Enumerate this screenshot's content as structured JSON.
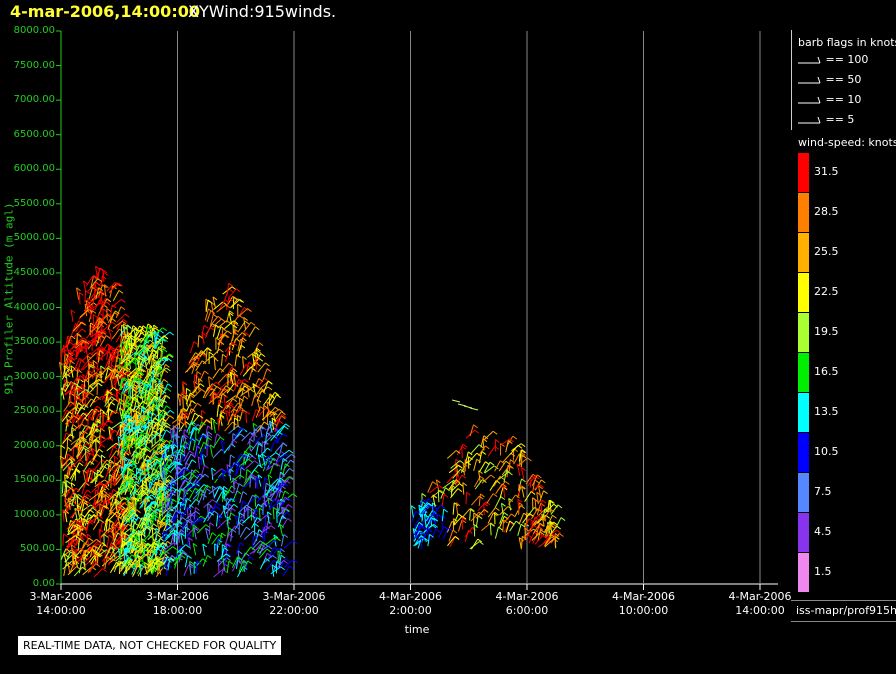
{
  "header": {
    "time": "4-mar-2006,14:00:00",
    "title": "XYWind:915winds."
  },
  "chart_data": {
    "type": "scatter",
    "title": "XYWind:915winds.",
    "xlabel": "time",
    "ylabel": "915 Profiler Altitude (m agl)",
    "ylim": [
      0,
      8000
    ],
    "y_ticks": [
      "0.00",
      "500.00",
      "1000.00",
      "1500.00",
      "2000.00",
      "2500.00",
      "3000.00",
      "3500.00",
      "4000.00",
      "4500.00",
      "5000.00",
      "5500.00",
      "6000.00",
      "6500.00",
      "7000.00",
      "7500.00",
      "8000.00"
    ],
    "x_ticks": [
      {
        "date": "3-Mar-2006",
        "time": "14:00:00"
      },
      {
        "date": "3-Mar-2006",
        "time": "18:00:00"
      },
      {
        "date": "3-Mar-2006",
        "time": "22:00:00"
      },
      {
        "date": "4-Mar-2006",
        "time": "2:00:00"
      },
      {
        "date": "4-Mar-2006",
        "time": "6:00:00"
      },
      {
        "date": "4-Mar-2006",
        "time": "10:00:00"
      },
      {
        "date": "4-Mar-2006",
        "time": "14:00:00"
      }
    ],
    "grid": true,
    "barb_legend": {
      "title": "barb flags in knots",
      "items": [
        "== 100",
        "== 50",
        "== 10",
        "== 5"
      ]
    },
    "colorbar": {
      "title": "wind-speed: knots",
      "levels": [
        {
          "label": "31.5",
          "color": "#ff0000"
        },
        {
          "label": "28.5",
          "color": "#ff8000"
        },
        {
          "label": "25.5",
          "color": "#ffb000"
        },
        {
          "label": "22.5",
          "color": "#ffff00"
        },
        {
          "label": "19.5",
          "color": "#aaff33"
        },
        {
          "label": "16.5",
          "color": "#00ee00"
        },
        {
          "label": "13.5",
          "color": "#00ffff"
        },
        {
          "label": "10.5",
          "color": "#0000ff"
        },
        {
          "label": "7.5",
          "color": "#5588ff"
        },
        {
          "label": "4.5",
          "color": "#8833ee"
        },
        {
          "label": "1.5",
          "color": "#ee88ee"
        }
      ]
    },
    "series": [
      {
        "x_range": [
          "3-Mar-2006 14:00",
          "3-Mar-2006 16:10"
        ],
        "y_range": [
          100,
          4450
        ],
        "dominant_speed": 31.5
      },
      {
        "x_range": [
          "3-Mar-2006 16:00",
          "3-Mar-2006 17:30"
        ],
        "y_range": [
          100,
          3600
        ],
        "dominant_speed": 19.5
      },
      {
        "x_range": [
          "3-Mar-2006 17:30",
          "3-Mar-2006 21:40"
        ],
        "y_range": [
          100,
          4300
        ],
        "dominant_speed": 10.5
      },
      {
        "x_range": [
          "4-Mar-2006 2:00",
          "4-Mar-2006 7:00"
        ],
        "y_range": [
          500,
          2650
        ],
        "dominant_speed": 25.5
      }
    ]
  },
  "quality_note": "REAL-TIME DATA, NOT CHECKED FOR QUALITY",
  "footer": {
    "source": "iss-mapr/prof915h"
  }
}
